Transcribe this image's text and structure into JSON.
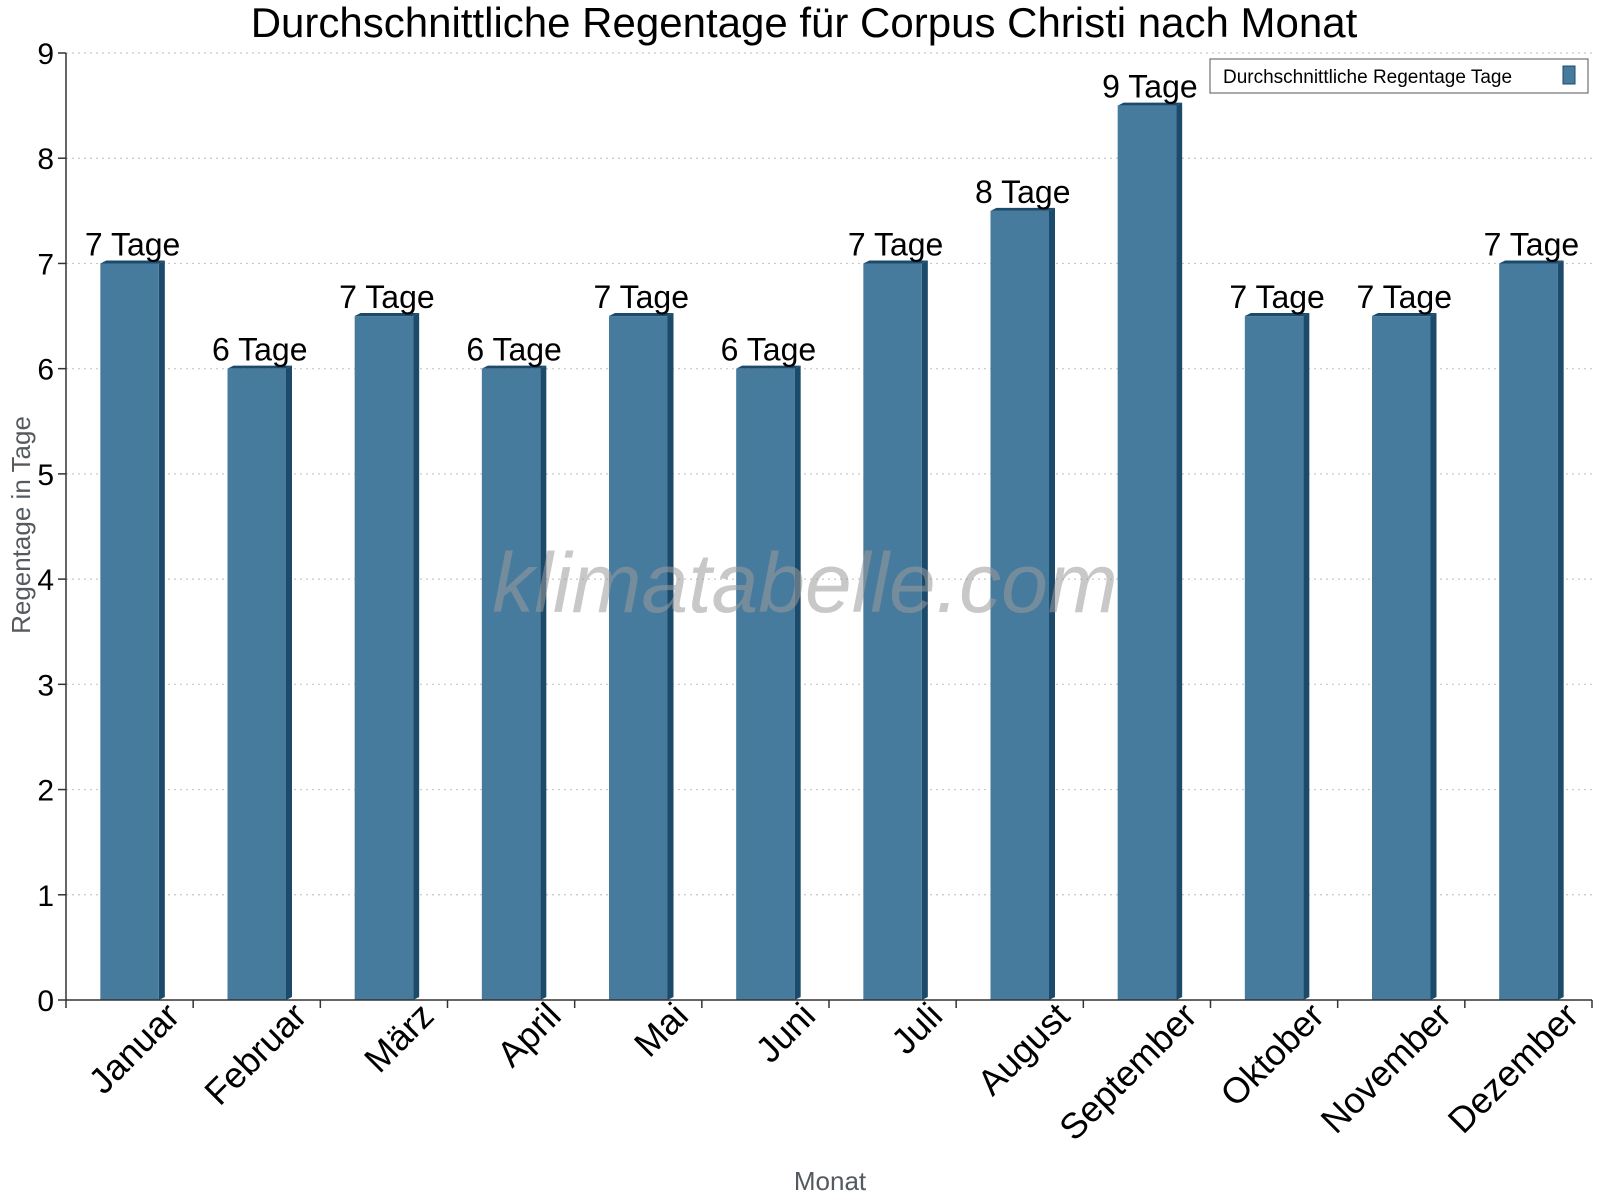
{
  "chart_data": {
    "type": "bar",
    "title": "Durchschnittliche Regentage für Corpus Christi nach Monat",
    "xlabel": "Monat",
    "ylabel": "Regentage in Tage",
    "ylim": [
      0,
      9
    ],
    "yticks": [
      0,
      1,
      2,
      3,
      4,
      5,
      6,
      7,
      8,
      9
    ],
    "grid": true,
    "legend_position": "top-right",
    "categories": [
      "Januar",
      "Februar",
      "März",
      "April",
      "Mai",
      "Juni",
      "Juli",
      "August",
      "September",
      "Oktober",
      "November",
      "Dezember"
    ],
    "series": [
      {
        "name": "Durchschnittliche Regentage Tage",
        "values": [
          7,
          6,
          6.5,
          6,
          6.5,
          6,
          7,
          7.5,
          8.5,
          6.5,
          6.5,
          7
        ],
        "data_labels": [
          "7 Tage",
          "6 Tage",
          "7 Tage",
          "6 Tage",
          "7 Tage",
          "6 Tage",
          "7 Tage",
          "8 Tage",
          "9 Tage",
          "7 Tage",
          "7 Tage",
          "7 Tage"
        ]
      }
    ],
    "colors": {
      "bar": "#467b9e",
      "bar_side": "#1b4a6b",
      "grid": "#c8c8c8",
      "axis": "#333333"
    },
    "watermark": "klimatabelle.com"
  }
}
